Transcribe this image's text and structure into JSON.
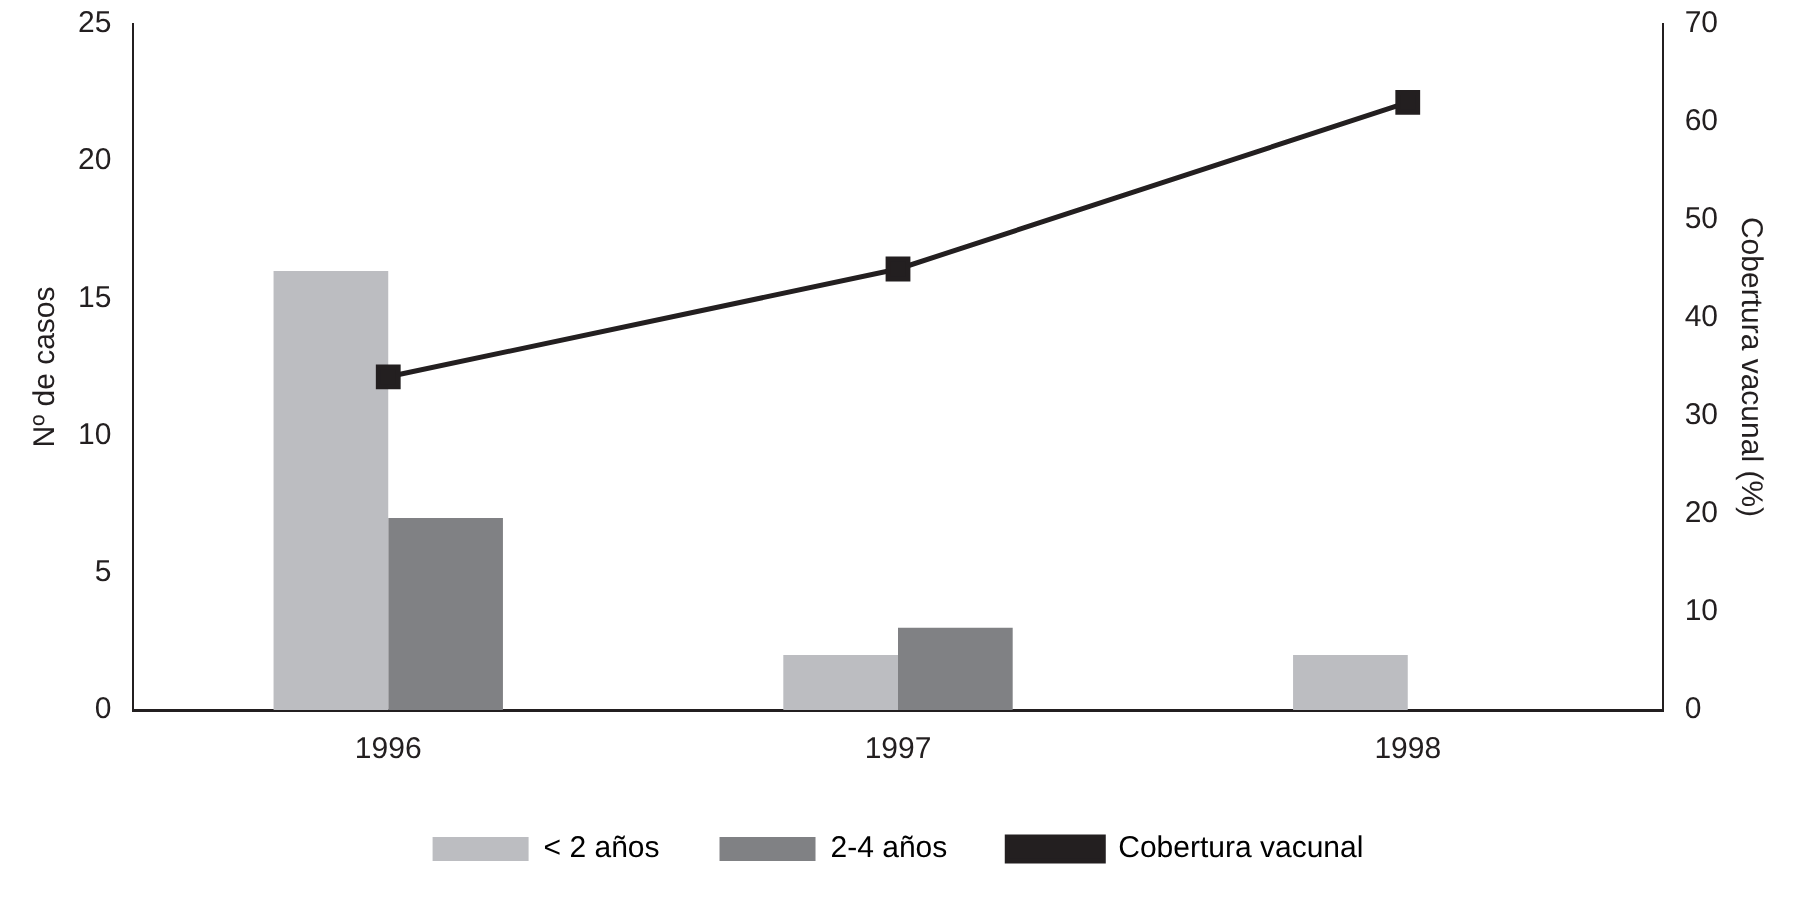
{
  "chart_data": {
    "type": "bar",
    "ylabel": "Nº de casos",
    "y2label": "Cobertura vacunal (%)",
    "categories": [
      "1996",
      "1997",
      "1998"
    ],
    "series": [
      {
        "name": "< 2 años",
        "color": "#bcbdc1",
        "values": [
          16,
          2,
          2
        ]
      },
      {
        "name": "2-4 años",
        "color": "#808184",
        "values": [
          7,
          3,
          0
        ]
      },
      {
        "name": "Cobertura vacunal",
        "type": "line",
        "axis": "y2",
        "color": "#231f20",
        "values": [
          34,
          45,
          62
        ]
      }
    ],
    "ylim": [
      0,
      25
    ],
    "yticks": [
      0,
      5,
      10,
      15,
      20,
      25
    ],
    "y2lim": [
      0,
      70
    ],
    "y2ticks": [
      0,
      10,
      20,
      30,
      40,
      50,
      60,
      70
    ],
    "grid": false,
    "legend": "bottom",
    "marker": "square"
  }
}
